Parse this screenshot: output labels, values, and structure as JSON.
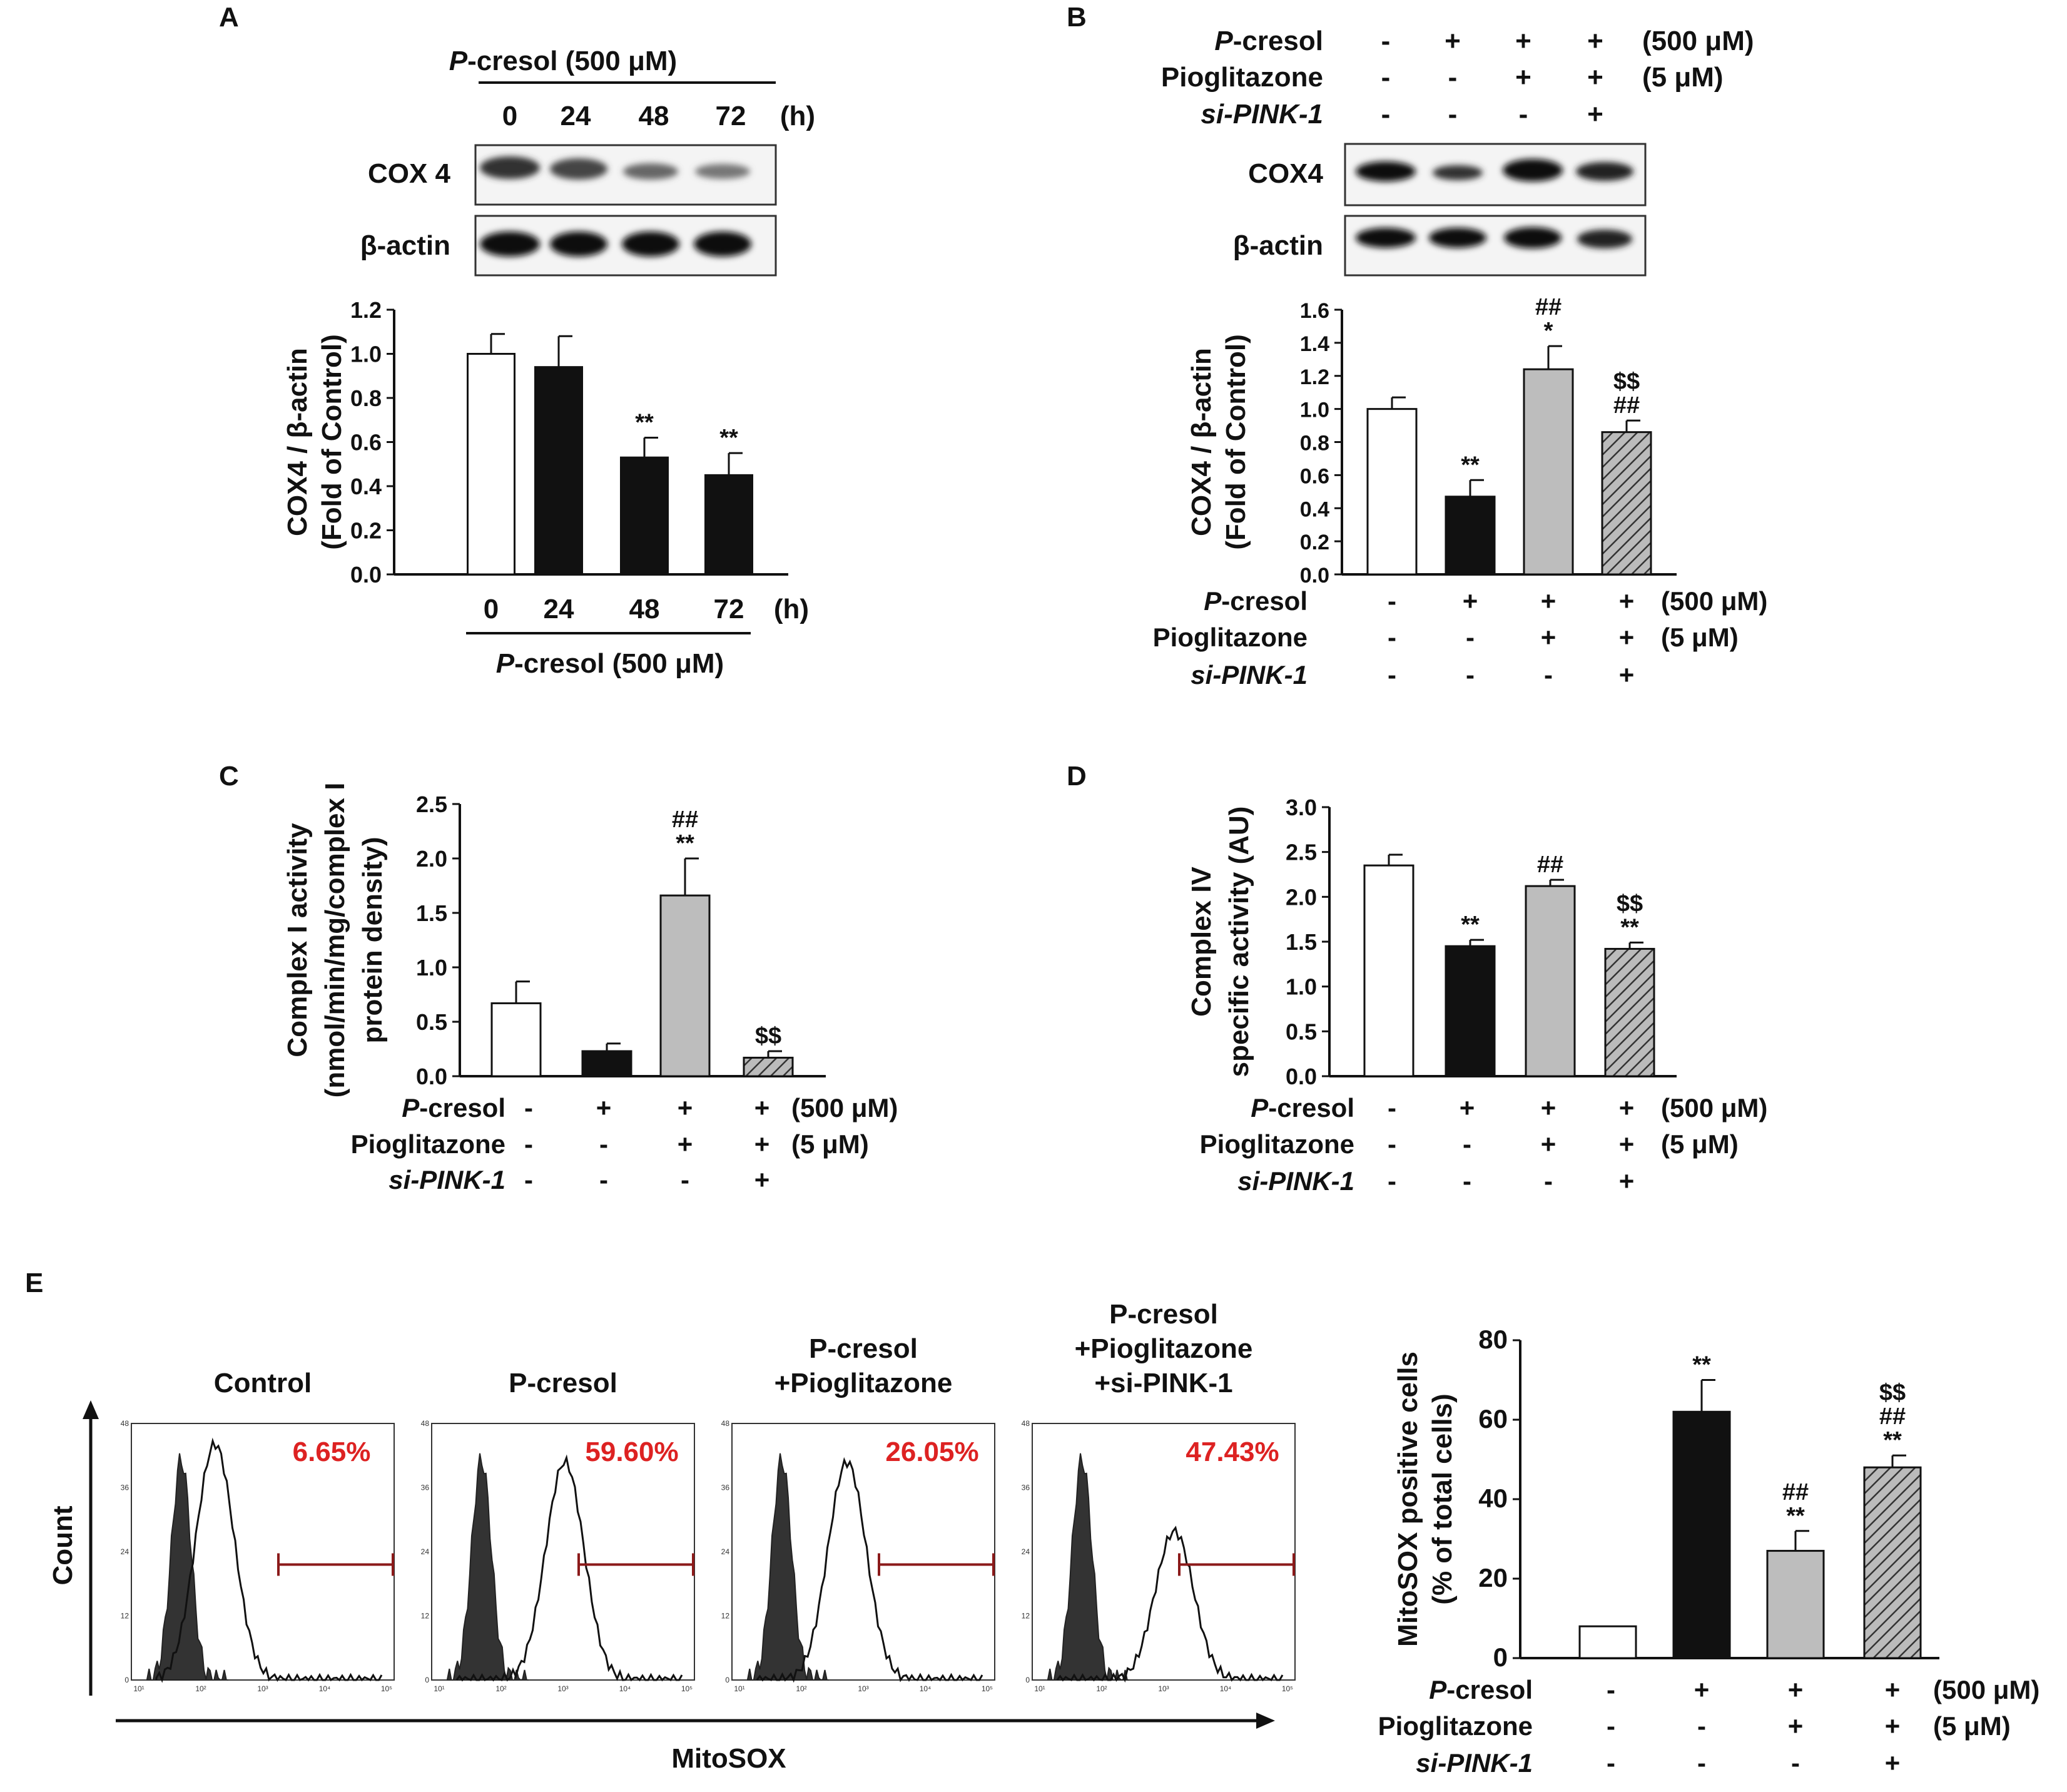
{
  "panel_labels": [
    "A",
    "B",
    "C",
    "D",
    "E"
  ],
  "treatments": {
    "rows": [
      "P-cresol",
      "Pioglitazone",
      "si-PINK-1"
    ],
    "italic_prefix": [
      "P",
      "",
      "si-PINK-1"
    ],
    "rest": [
      "-cresol",
      "Pioglitazone",
      ""
    ],
    "doses": [
      "(500 μM)",
      "(5 μM)",
      ""
    ],
    "matrix": [
      [
        "-",
        "+",
        "+",
        "+"
      ],
      [
        "-",
        "-",
        "+",
        "+"
      ],
      [
        "-",
        "-",
        "-",
        "+"
      ]
    ]
  },
  "panelA": {
    "header_italic": "P",
    "header_rest": "-cresol (500 μM)",
    "times": [
      "0",
      "24",
      "48",
      "72"
    ],
    "time_unit": "(h)",
    "blot_labels": [
      "COX 4",
      "β-actin"
    ]
  },
  "panelB": {
    "blot_labels": [
      "COX4",
      "β-actin"
    ]
  },
  "panelE": {
    "flow_titles": [
      [
        "Control"
      ],
      [
        "P-cresol"
      ],
      [
        "P-cresol",
        "+Pioglitazone"
      ],
      [
        "P-cresol",
        "+Pioglitazone",
        "+si-PINK-1"
      ]
    ],
    "flow_percent": [
      "6.65%",
      "59.60%",
      "26.05%",
      "47.43%"
    ],
    "flow_ylabel": "Count",
    "flow_xlabel": "MitoSOX",
    "flow_yticks": [
      "48",
      "36",
      "24",
      "12",
      "0"
    ],
    "flow_xticks": [
      "10¹",
      "10²",
      "10³",
      "10⁴",
      "10⁵"
    ]
  },
  "chart_data": [
    {
      "id": "A",
      "type": "bar",
      "categories": [
        "0",
        "24",
        "48",
        "72"
      ],
      "values": [
        1.0,
        0.94,
        0.53,
        0.45
      ],
      "errors": [
        0.09,
        0.14,
        0.09,
        0.1
      ],
      "annotations": [
        [],
        [],
        [
          "**"
        ],
        [
          "**"
        ]
      ],
      "ylabel": [
        "COX4 / β-actin",
        "(Fold of Control)"
      ],
      "xlabel": "P-cresol (500 μM)",
      "ylim": [
        0,
        1.2
      ],
      "yticks": [
        "0.0",
        "0.2",
        "0.4",
        "0.6",
        "0.8",
        "1.0",
        "1.2"
      ],
      "fills": [
        "white",
        "black",
        "black",
        "black"
      ]
    },
    {
      "id": "B",
      "type": "bar",
      "categories": [
        "Control",
        "P-cresol",
        "P-cresol+Pioglitazone",
        "P-cresol+Pioglitazone+si-PINK-1"
      ],
      "values": [
        1.0,
        0.47,
        1.24,
        0.86
      ],
      "errors": [
        0.07,
        0.1,
        0.14,
        0.07
      ],
      "annotations": [
        [],
        [
          "**"
        ],
        [
          "*",
          "##"
        ],
        [
          "##",
          "$$"
        ]
      ],
      "ylabel": [
        "COX4 / β-actin",
        "(Fold of Control)"
      ],
      "ylim": [
        0,
        1.6
      ],
      "yticks": [
        "0.0",
        "0.2",
        "0.4",
        "0.6",
        "0.8",
        "1.0",
        "1.2",
        "1.4",
        "1.6"
      ],
      "fills": [
        "white",
        "black",
        "gray",
        "hatch"
      ]
    },
    {
      "id": "C",
      "type": "bar",
      "categories": [
        "Control",
        "P-cresol",
        "P-cresol+Pioglitazone",
        "P-cresol+Pioglitazone+si-PINK-1"
      ],
      "values": [
        0.67,
        0.23,
        1.66,
        0.17
      ],
      "errors": [
        0.2,
        0.07,
        0.34,
        0.06
      ],
      "annotations": [
        [],
        [],
        [
          "**",
          "##"
        ],
        [
          "$$"
        ]
      ],
      "ylabel": [
        "Complex I activity",
        "(nmol/min/mg/complex I",
        "protein density)"
      ],
      "ylim": [
        0,
        2.5
      ],
      "yticks": [
        "0.0",
        "0.5",
        "1.0",
        "1.5",
        "2.0",
        "2.5"
      ],
      "fills": [
        "white",
        "black",
        "gray",
        "hatch"
      ]
    },
    {
      "id": "D",
      "type": "bar",
      "categories": [
        "Control",
        "P-cresol",
        "P-cresol+Pioglitazone",
        "P-cresol+Pioglitazone+si-PINK-1"
      ],
      "values": [
        2.35,
        1.45,
        2.12,
        1.42
      ],
      "errors": [
        0.12,
        0.07,
        0.07,
        0.07
      ],
      "annotations": [
        [],
        [
          "**"
        ],
        [
          "##"
        ],
        [
          "**",
          "$$"
        ]
      ],
      "ylabel": [
        "Complex IV",
        "specific activity (AU)"
      ],
      "ylim": [
        0,
        3.0
      ],
      "yticks": [
        "0.0",
        "0.5",
        "1.0",
        "1.5",
        "2.0",
        "2.5",
        "3.0"
      ],
      "fills": [
        "white",
        "black",
        "gray",
        "hatch"
      ]
    },
    {
      "id": "E",
      "type": "bar",
      "categories": [
        "Control",
        "P-cresol",
        "P-cresol+Pioglitazone",
        "P-cresol+Pioglitazone+si-PINK-1"
      ],
      "values": [
        8,
        62,
        27,
        48
      ],
      "errors": [
        0,
        8,
        5,
        3
      ],
      "annotations": [
        [],
        [
          "**"
        ],
        [
          "**",
          "##"
        ],
        [
          "**",
          "##",
          "$$"
        ]
      ],
      "ylabel": [
        "MitoSOX positive cells",
        "(% of total cells)"
      ],
      "ylim": [
        0,
        80
      ],
      "yticks": [
        "0",
        "20",
        "40",
        "60",
        "80"
      ],
      "fills": [
        "white",
        "black",
        "gray",
        "hatch"
      ]
    }
  ]
}
